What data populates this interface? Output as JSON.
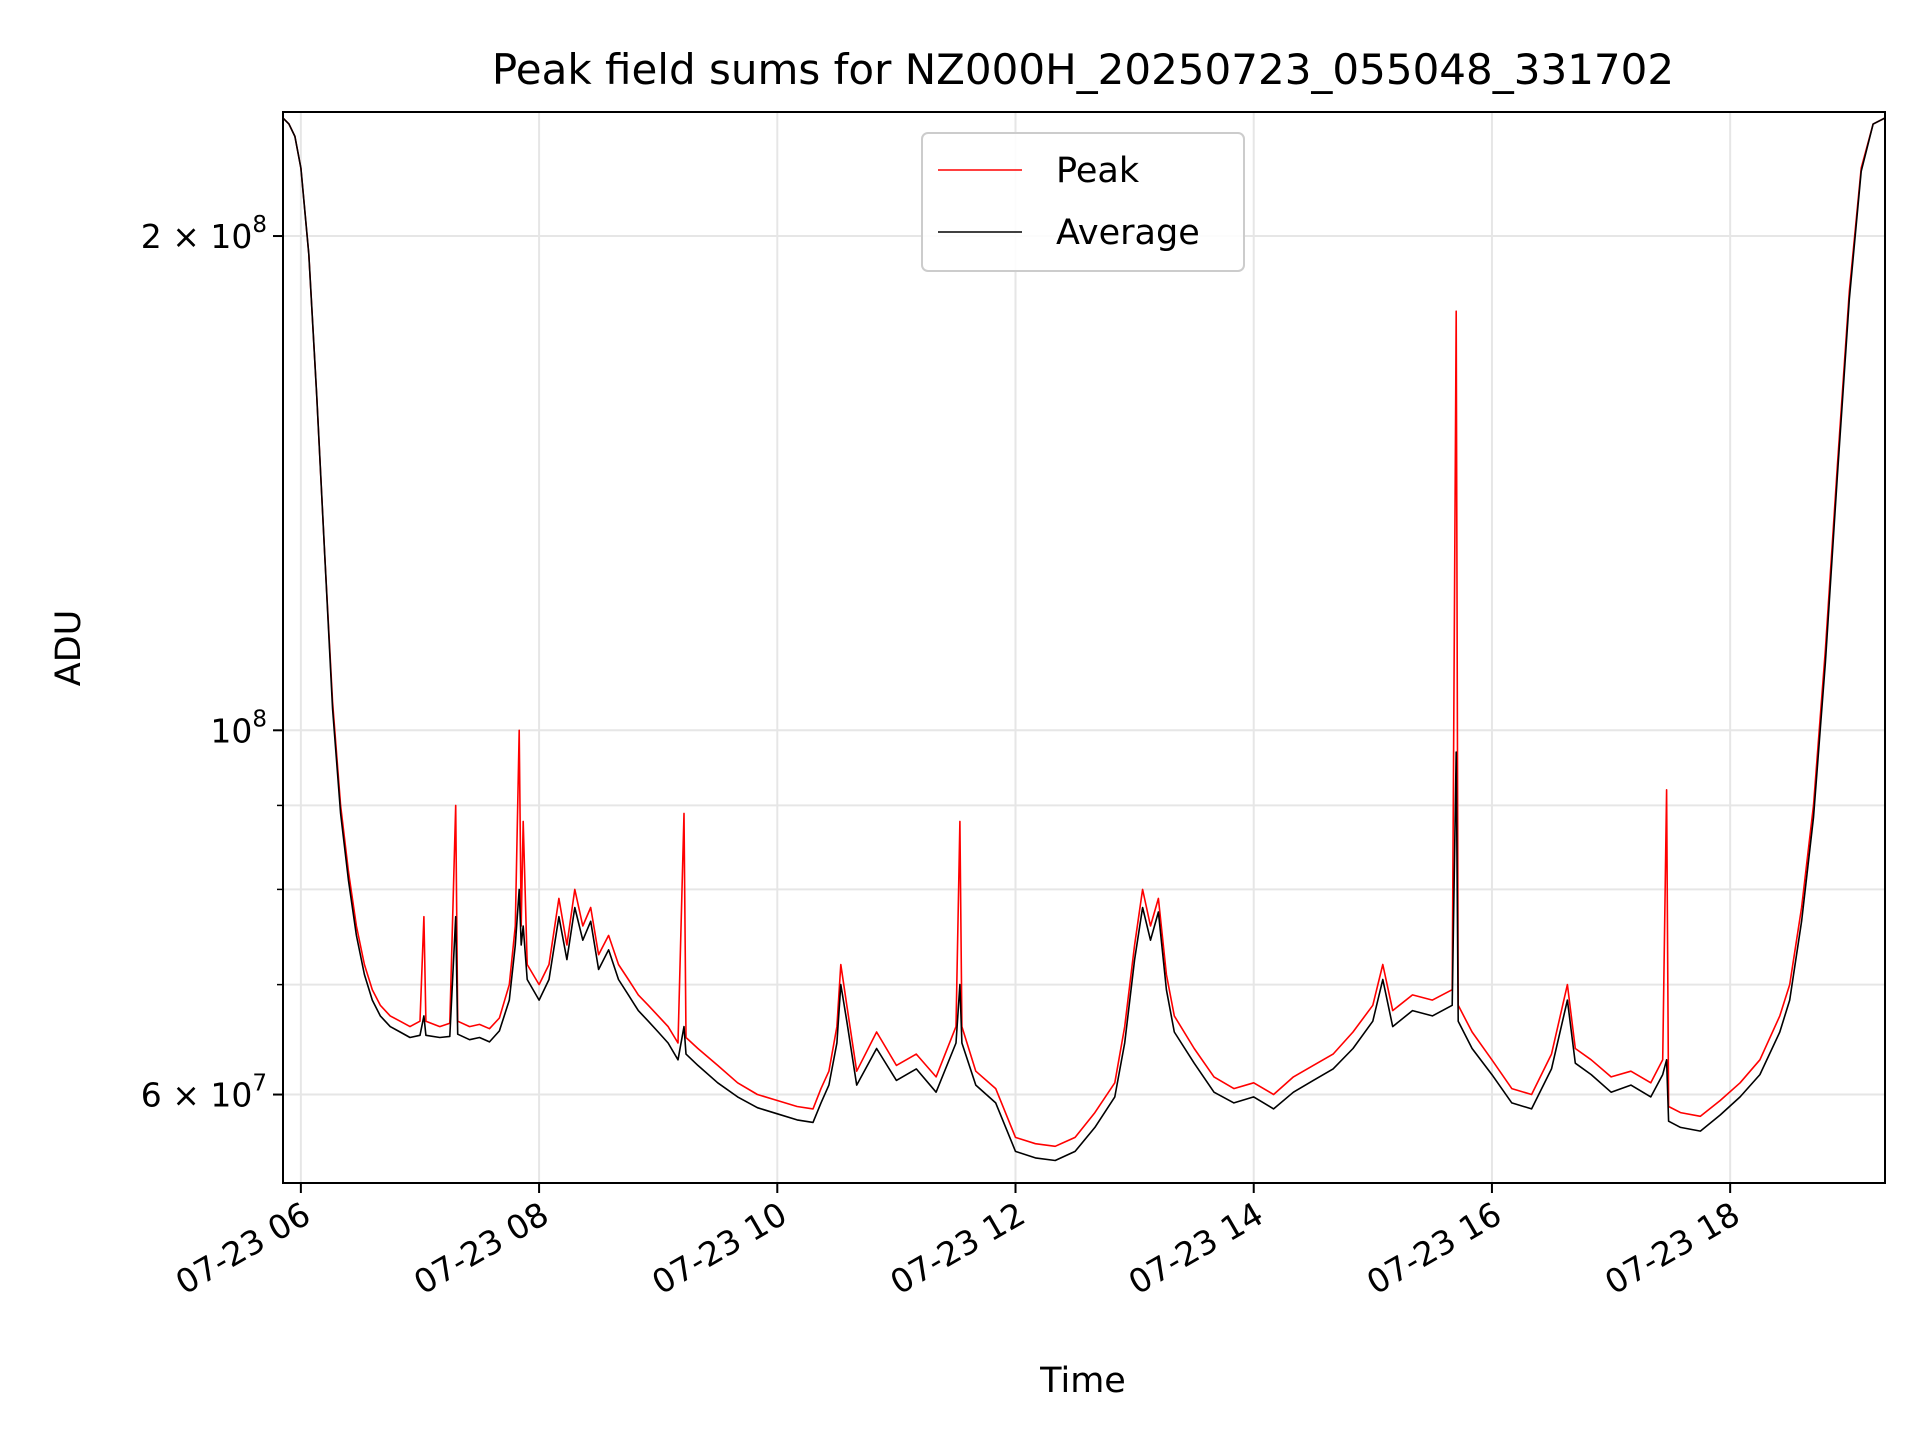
{
  "chart_data": {
    "type": "line",
    "title": "Peak field sums for NZ000H_20250723_055048_331702",
    "xlabel": "Time",
    "ylabel": "ADU",
    "y_scale": "log",
    "xlim": [
      "2025-07-23 05:51",
      "2025-07-23 19:18"
    ],
    "ylim": [
      53000000,
      238000000
    ],
    "x_ticks": [
      {
        "time": "2025-07-23 06:00",
        "label": "07-23 06"
      },
      {
        "time": "2025-07-23 08:00",
        "label": "07-23 08"
      },
      {
        "time": "2025-07-23 10:00",
        "label": "07-23 10"
      },
      {
        "time": "2025-07-23 12:00",
        "label": "07-23 12"
      },
      {
        "time": "2025-07-23 14:00",
        "label": "07-23 14"
      },
      {
        "time": "2025-07-23 16:00",
        "label": "07-23 16"
      },
      {
        "time": "2025-07-23 18:00",
        "label": "07-23 18"
      }
    ],
    "y_ticks_major": [
      {
        "value": 60000000,
        "base": "6 × 10",
        "exp": "7"
      },
      {
        "value": 100000000,
        "base": "10",
        "exp": "8"
      },
      {
        "value": 200000000,
        "base": "2 × 10",
        "exp": "8"
      }
    ],
    "y_ticks_minor": [
      70000000,
      80000000,
      90000000
    ],
    "grid": true,
    "legend": "upper center",
    "series": [
      {
        "name": "Peak",
        "color": "#ff0000",
        "points": [
          [
            "05:51",
            236000000
          ],
          [
            "05:54",
            234000000
          ],
          [
            "05:57",
            230000000
          ],
          [
            "06:00",
            220000000
          ],
          [
            "06:04",
            195000000
          ],
          [
            "06:08",
            160000000
          ],
          [
            "06:12",
            128000000
          ],
          [
            "06:16",
            104000000
          ],
          [
            "06:20",
            90000000
          ],
          [
            "06:24",
            82000000
          ],
          [
            "06:28",
            76000000
          ],
          [
            "06:32",
            72000000
          ],
          [
            "06:36",
            69500000
          ],
          [
            "06:40",
            68000000
          ],
          [
            "06:45",
            67000000
          ],
          [
            "06:50",
            66500000
          ],
          [
            "06:55",
            66000000
          ],
          [
            "07:00",
            66500000
          ],
          [
            "07:02",
            77000000
          ],
          [
            "07:03",
            66500000
          ],
          [
            "07:10",
            66000000
          ],
          [
            "07:15",
            66300000
          ],
          [
            "07:18",
            90000000
          ],
          [
            "07:19",
            66500000
          ],
          [
            "07:25",
            66000000
          ],
          [
            "07:30",
            66200000
          ],
          [
            "07:35",
            65800000
          ],
          [
            "07:40",
            66800000
          ],
          [
            "07:45",
            70000000
          ],
          [
            "07:48",
            76000000
          ],
          [
            "07:50",
            100000000
          ],
          [
            "07:51",
            76000000
          ],
          [
            "07:52",
            88000000
          ],
          [
            "07:54",
            72000000
          ],
          [
            "08:00",
            70000000
          ],
          [
            "08:05",
            72000000
          ],
          [
            "08:10",
            79000000
          ],
          [
            "08:14",
            74000000
          ],
          [
            "08:18",
            80000000
          ],
          [
            "08:22",
            76000000
          ],
          [
            "08:26",
            78000000
          ],
          [
            "08:30",
            73000000
          ],
          [
            "08:35",
            75000000
          ],
          [
            "08:40",
            72000000
          ],
          [
            "08:45",
            70500000
          ],
          [
            "08:50",
            69000000
          ],
          [
            "08:55",
            68000000
          ],
          [
            "09:00",
            67000000
          ],
          [
            "09:05",
            66000000
          ],
          [
            "09:10",
            64500000
          ],
          [
            "09:13",
            89000000
          ],
          [
            "09:14",
            65000000
          ],
          [
            "09:20",
            64000000
          ],
          [
            "09:30",
            62500000
          ],
          [
            "09:40",
            61000000
          ],
          [
            "09:50",
            60000000
          ],
          [
            "10:00",
            59500000
          ],
          [
            "10:10",
            59000000
          ],
          [
            "10:18",
            58800000
          ],
          [
            "10:22",
            60500000
          ],
          [
            "10:26",
            62000000
          ],
          [
            "10:30",
            66000000
          ],
          [
            "10:32",
            72000000
          ],
          [
            "10:35",
            68000000
          ],
          [
            "10:40",
            62000000
          ],
          [
            "10:50",
            65500000
          ],
          [
            "11:00",
            62500000
          ],
          [
            "11:10",
            63500000
          ],
          [
            "11:20",
            61500000
          ],
          [
            "11:30",
            66000000
          ],
          [
            "11:32",
            88000000
          ],
          [
            "11:33",
            66000000
          ],
          [
            "11:40",
            62000000
          ],
          [
            "11:50",
            60500000
          ],
          [
            "12:00",
            56500000
          ],
          [
            "12:10",
            56000000
          ],
          [
            "12:20",
            55800000
          ],
          [
            "12:30",
            56500000
          ],
          [
            "12:40",
            58500000
          ],
          [
            "12:50",
            61000000
          ],
          [
            "12:55",
            66000000
          ],
          [
            "13:00",
            74000000
          ],
          [
            "13:04",
            80000000
          ],
          [
            "13:08",
            76000000
          ],
          [
            "13:12",
            79000000
          ],
          [
            "13:16",
            71000000
          ],
          [
            "13:20",
            67000000
          ],
          [
            "13:30",
            64000000
          ],
          [
            "13:40",
            61500000
          ],
          [
            "13:50",
            60500000
          ],
          [
            "14:00",
            61000000
          ],
          [
            "14:10",
            60000000
          ],
          [
            "14:20",
            61500000
          ],
          [
            "14:30",
            62500000
          ],
          [
            "14:40",
            63500000
          ],
          [
            "14:50",
            65500000
          ],
          [
            "15:00",
            68000000
          ],
          [
            "15:05",
            72000000
          ],
          [
            "15:10",
            67500000
          ],
          [
            "15:20",
            69000000
          ],
          [
            "15:30",
            68500000
          ],
          [
            "15:40",
            69500000
          ],
          [
            "15:42",
            180000000
          ],
          [
            "15:43",
            68000000
          ],
          [
            "15:50",
            65500000
          ],
          [
            "16:00",
            63000000
          ],
          [
            "16:10",
            60500000
          ],
          [
            "16:20",
            60000000
          ],
          [
            "16:30",
            63500000
          ],
          [
            "16:38",
            70000000
          ],
          [
            "16:42",
            64000000
          ],
          [
            "16:50",
            63000000
          ],
          [
            "17:00",
            61500000
          ],
          [
            "17:10",
            62000000
          ],
          [
            "17:20",
            61000000
          ],
          [
            "17:26",
            63000000
          ],
          [
            "17:28",
            92000000
          ],
          [
            "17:29",
            59000000
          ],
          [
            "17:35",
            58500000
          ],
          [
            "17:45",
            58200000
          ],
          [
            "17:55",
            59500000
          ],
          [
            "18:05",
            61000000
          ],
          [
            "18:15",
            63000000
          ],
          [
            "18:25",
            67000000
          ],
          [
            "18:30",
            70000000
          ],
          [
            "18:36",
            78000000
          ],
          [
            "18:42",
            90000000
          ],
          [
            "18:48",
            112000000
          ],
          [
            "18:54",
            145000000
          ],
          [
            "19:00",
            185000000
          ],
          [
            "19:06",
            220000000
          ],
          [
            "19:12",
            234000000
          ],
          [
            "19:18",
            236000000
          ]
        ]
      },
      {
        "name": "Average",
        "color": "#000000",
        "points": [
          [
            "05:51",
            236000000
          ],
          [
            "05:54",
            234000000
          ],
          [
            "05:57",
            230000000
          ],
          [
            "06:00",
            220000000
          ],
          [
            "06:04",
            195000000
          ],
          [
            "06:08",
            160000000
          ],
          [
            "06:12",
            128000000
          ],
          [
            "06:16",
            103000000
          ],
          [
            "06:20",
            89000000
          ],
          [
            "06:24",
            81000000
          ],
          [
            "06:28",
            75000000
          ],
          [
            "06:32",
            71000000
          ],
          [
            "06:36",
            68500000
          ],
          [
            "06:40",
            67000000
          ],
          [
            "06:45",
            66000000
          ],
          [
            "06:50",
            65500000
          ],
          [
            "06:55",
            65000000
          ],
          [
            "07:00",
            65200000
          ],
          [
            "07:02",
            67000000
          ],
          [
            "07:03",
            65200000
          ],
          [
            "07:10",
            65000000
          ],
          [
            "07:15",
            65100000
          ],
          [
            "07:18",
            77000000
          ],
          [
            "07:19",
            65300000
          ],
          [
            "07:25",
            64800000
          ],
          [
            "07:30",
            65000000
          ],
          [
            "07:35",
            64600000
          ],
          [
            "07:40",
            65600000
          ],
          [
            "07:45",
            68500000
          ],
          [
            "07:48",
            74000000
          ],
          [
            "07:50",
            80000000
          ],
          [
            "07:51",
            74000000
          ],
          [
            "07:52",
            76000000
          ],
          [
            "07:54",
            70500000
          ],
          [
            "08:00",
            68500000
          ],
          [
            "08:05",
            70500000
          ],
          [
            "08:10",
            77000000
          ],
          [
            "08:14",
            72500000
          ],
          [
            "08:18",
            78000000
          ],
          [
            "08:22",
            74500000
          ],
          [
            "08:26",
            76500000
          ],
          [
            "08:30",
            71500000
          ],
          [
            "08:35",
            73500000
          ],
          [
            "08:40",
            70500000
          ],
          [
            "08:45",
            69000000
          ],
          [
            "08:50",
            67500000
          ],
          [
            "08:55",
            66500000
          ],
          [
            "09:00",
            65500000
          ],
          [
            "09:05",
            64500000
          ],
          [
            "09:10",
            63000000
          ],
          [
            "09:13",
            66000000
          ],
          [
            "09:14",
            63500000
          ],
          [
            "09:20",
            62500000
          ],
          [
            "09:30",
            61000000
          ],
          [
            "09:40",
            59800000
          ],
          [
            "09:50",
            58900000
          ],
          [
            "10:00",
            58400000
          ],
          [
            "10:10",
            57900000
          ],
          [
            "10:18",
            57700000
          ],
          [
            "10:22",
            59300000
          ],
          [
            "10:26",
            60800000
          ],
          [
            "10:30",
            64500000
          ],
          [
            "10:32",
            70000000
          ],
          [
            "10:35",
            66500000
          ],
          [
            "10:40",
            60800000
          ],
          [
            "10:50",
            64000000
          ],
          [
            "11:00",
            61200000
          ],
          [
            "11:10",
            62200000
          ],
          [
            "11:20",
            60200000
          ],
          [
            "11:30",
            64500000
          ],
          [
            "11:32",
            70000000
          ],
          [
            "11:33",
            64500000
          ],
          [
            "11:40",
            60800000
          ],
          [
            "11:50",
            59300000
          ],
          [
            "12:00",
            55400000
          ],
          [
            "12:10",
            54900000
          ],
          [
            "12:20",
            54700000
          ],
          [
            "12:30",
            55400000
          ],
          [
            "12:40",
            57300000
          ],
          [
            "12:50",
            59800000
          ],
          [
            "12:55",
            64500000
          ],
          [
            "13:00",
            72500000
          ],
          [
            "13:04",
            78000000
          ],
          [
            "13:08",
            74500000
          ],
          [
            "13:12",
            77500000
          ],
          [
            "13:16",
            69500000
          ],
          [
            "13:20",
            65500000
          ],
          [
            "13:30",
            62700000
          ],
          [
            "13:40",
            60200000
          ],
          [
            "13:50",
            59300000
          ],
          [
            "14:00",
            59800000
          ],
          [
            "14:10",
            58800000
          ],
          [
            "14:20",
            60200000
          ],
          [
            "14:30",
            61200000
          ],
          [
            "14:40",
            62200000
          ],
          [
            "14:50",
            64000000
          ],
          [
            "15:00",
            66500000
          ],
          [
            "15:05",
            70500000
          ],
          [
            "15:10",
            66000000
          ],
          [
            "15:20",
            67500000
          ],
          [
            "15:30",
            67000000
          ],
          [
            "15:40",
            68000000
          ],
          [
            "15:42",
            97000000
          ],
          [
            "15:43",
            66500000
          ],
          [
            "15:50",
            64000000
          ],
          [
            "16:00",
            61700000
          ],
          [
            "16:10",
            59300000
          ],
          [
            "16:20",
            58800000
          ],
          [
            "16:30",
            62200000
          ],
          [
            "16:38",
            68500000
          ],
          [
            "16:42",
            62700000
          ],
          [
            "16:50",
            61700000
          ],
          [
            "17:00",
            60200000
          ],
          [
            "17:10",
            60800000
          ],
          [
            "17:20",
            59800000
          ],
          [
            "17:26",
            61700000
          ],
          [
            "17:28",
            63000000
          ],
          [
            "17:29",
            57800000
          ],
          [
            "17:35",
            57300000
          ],
          [
            "17:45",
            57000000
          ],
          [
            "17:55",
            58300000
          ],
          [
            "18:05",
            59800000
          ],
          [
            "18:15",
            61700000
          ],
          [
            "18:25",
            65500000
          ],
          [
            "18:30",
            68500000
          ],
          [
            "18:36",
            76500000
          ],
          [
            "18:42",
            88500000
          ],
          [
            "18:48",
            110000000
          ],
          [
            "18:54",
            143000000
          ],
          [
            "19:00",
            183000000
          ],
          [
            "19:06",
            219000000
          ],
          [
            "19:12",
            234000000
          ],
          [
            "19:18",
            236000000
          ]
        ]
      }
    ]
  }
}
